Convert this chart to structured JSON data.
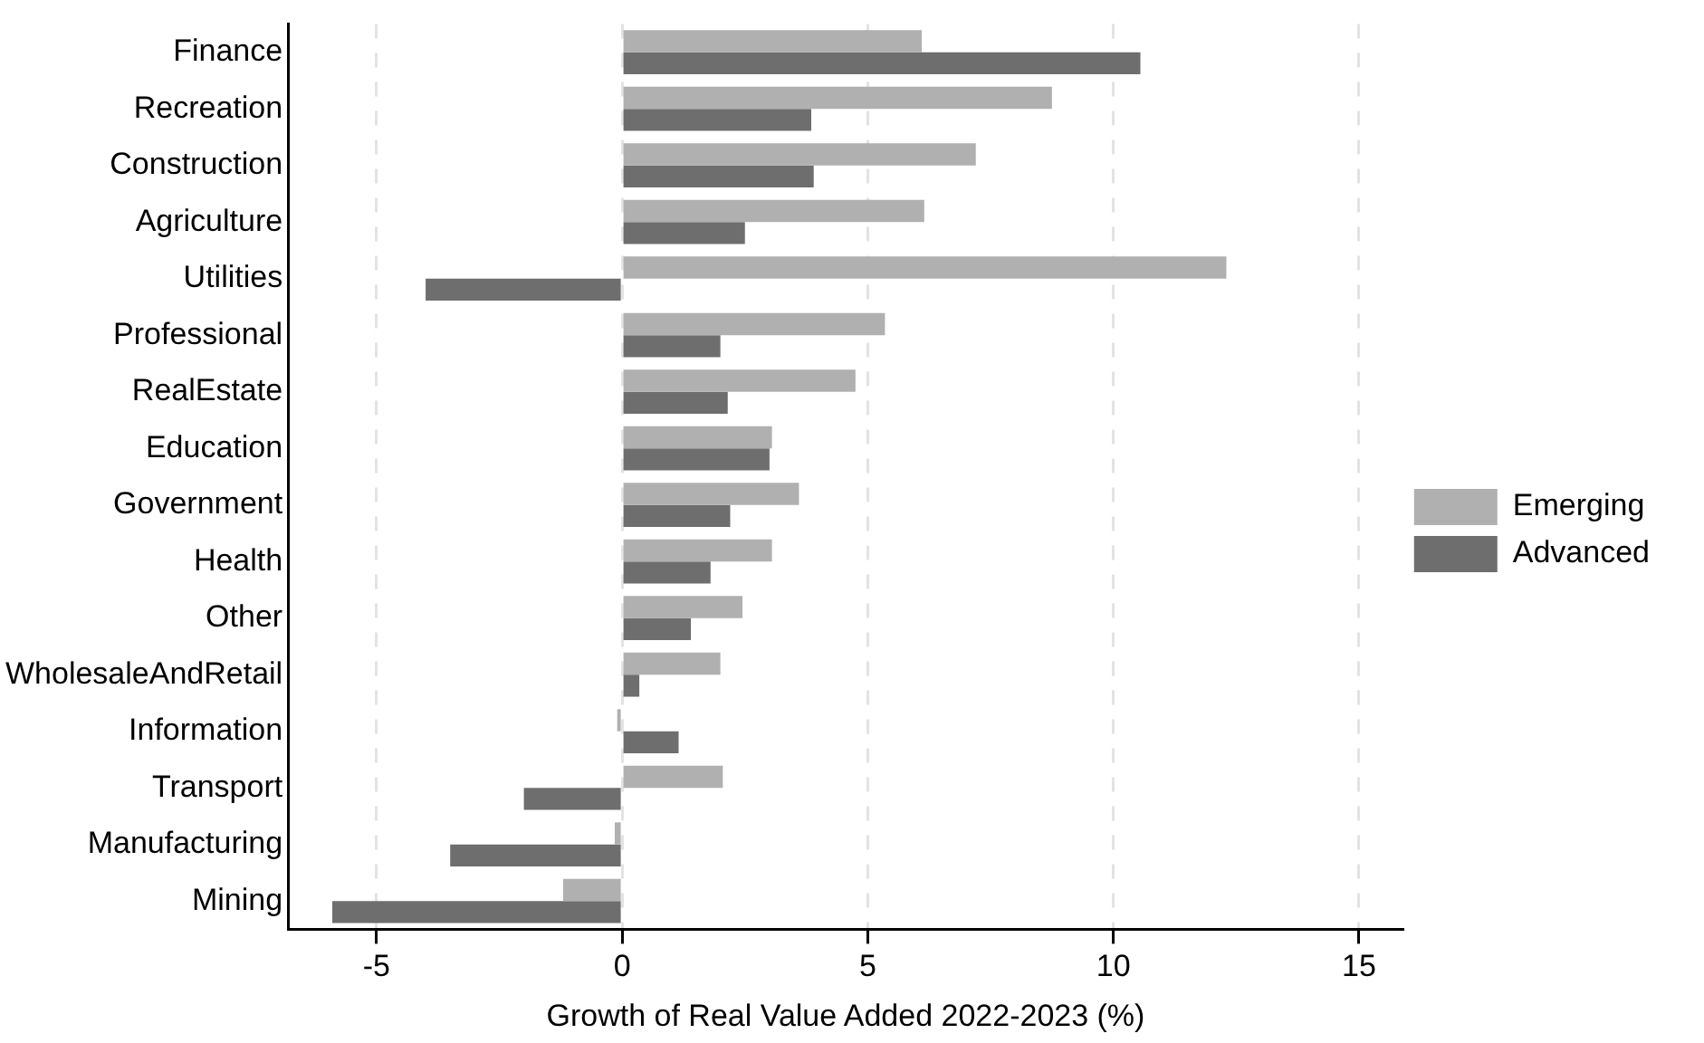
{
  "chart_data": {
    "type": "bar",
    "orientation": "horizontal",
    "xlabel": "Growth of Real Value Added 2022-2023 (%)",
    "categories": [
      "Finance",
      "Recreation",
      "Construction",
      "Agriculture",
      "Utilities",
      "Professional",
      "RealEstate",
      "Education",
      "Government",
      "Health",
      "Other",
      "WholesaleAndRetail",
      "Information",
      "Transport",
      "Manufacturing",
      "Mining"
    ],
    "series": [
      {
        "name": "Emerging",
        "color": "#b0b0b0",
        "values": [
          6.1,
          8.75,
          7.2,
          6.15,
          12.3,
          5.35,
          4.75,
          3.05,
          3.6,
          3.05,
          2.45,
          2.0,
          -0.1,
          2.05,
          -0.15,
          -1.2
        ]
      },
      {
        "name": "Advanced",
        "color": "#6e6e6e",
        "values": [
          10.55,
          3.85,
          3.9,
          2.5,
          -4.0,
          2.0,
          2.15,
          3.0,
          2.2,
          1.8,
          1.4,
          0.35,
          1.15,
          -2.0,
          -3.5,
          -5.9
        ]
      }
    ],
    "xlim": [
      -6.8,
      15.9
    ],
    "xticks": [
      -5,
      0,
      5,
      10,
      15
    ],
    "grid": "x",
    "legend": "right"
  }
}
